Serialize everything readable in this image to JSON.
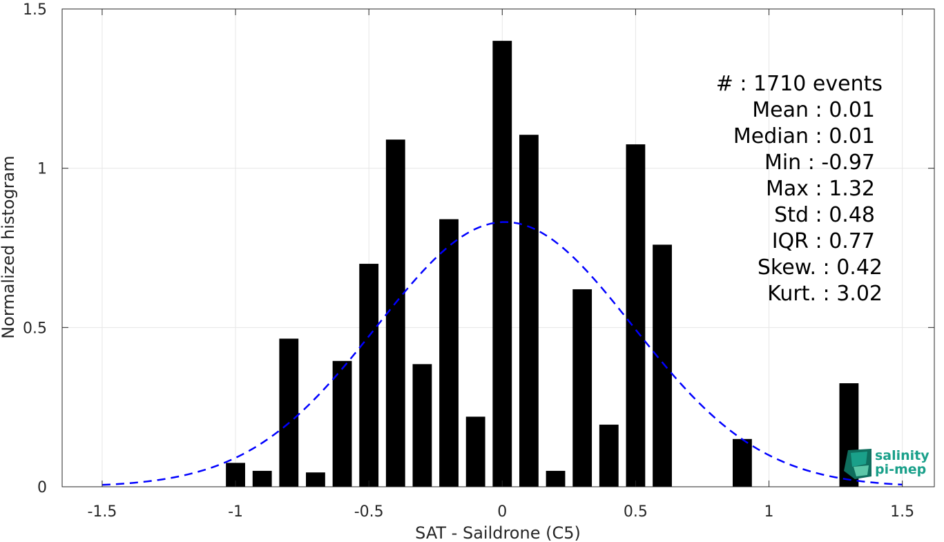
{
  "chart_data": {
    "type": "bar",
    "xlabel": "SAT - Saildrone (C5)",
    "ylabel": "Normalized histogram",
    "xlim": [
      -1.65,
      1.62
    ],
    "ylim": [
      0,
      1.5
    ],
    "xticks": [
      -1.5,
      -1,
      -0.5,
      0,
      0.5,
      1,
      1.5
    ],
    "xtick_labels": [
      "-1.5",
      "-1",
      "-0.5",
      "0",
      "0.5",
      "1",
      "1.5"
    ],
    "yticks": [
      0,
      0.5,
      1,
      1.5
    ],
    "ytick_labels": [
      "0",
      "0.5",
      "1",
      "1.5"
    ],
    "grid": true,
    "bar_color": "#000000",
    "bin_width": 0.1,
    "bars": [
      {
        "x": -1.0,
        "value": 0.075
      },
      {
        "x": -0.9,
        "value": 0.05
      },
      {
        "x": -0.8,
        "value": 0.465
      },
      {
        "x": -0.7,
        "value": 0.045
      },
      {
        "x": -0.6,
        "value": 0.395
      },
      {
        "x": -0.5,
        "value": 0.7
      },
      {
        "x": -0.4,
        "value": 1.09
      },
      {
        "x": -0.3,
        "value": 0.385
      },
      {
        "x": -0.2,
        "value": 0.84
      },
      {
        "x": -0.1,
        "value": 0.22
      },
      {
        "x": 0.0,
        "value": 1.4
      },
      {
        "x": 0.1,
        "value": 1.105
      },
      {
        "x": 0.2,
        "value": 0.05
      },
      {
        "x": 0.3,
        "value": 0.62
      },
      {
        "x": 0.4,
        "value": 0.195
      },
      {
        "x": 0.5,
        "value": 1.075
      },
      {
        "x": 0.6,
        "value": 0.76
      },
      {
        "x": 0.9,
        "value": 0.15
      },
      {
        "x": 1.3,
        "value": 0.325
      }
    ],
    "fit_curve": {
      "type": "normal",
      "style": "dashed",
      "color": "#0000ff",
      "mean": 0.01,
      "std": 0.48,
      "x_range": [
        -1.5,
        1.5
      ]
    },
    "stats": [
      {
        "label": "#  : 1710 events"
      },
      {
        "label": "Mean : 0.01"
      },
      {
        "label": "Median : 0.01"
      },
      {
        "label": "Min : -0.97"
      },
      {
        "label": "Max : 1.32"
      },
      {
        "label": "Std : 0.48"
      },
      {
        "label": "IQR : 0.77"
      },
      {
        "label": "Skew. : 0.42"
      },
      {
        "label": "Kurt. : 3.02"
      }
    ]
  },
  "logo": {
    "line1": "salinity",
    "line2": "pi-mep",
    "colors": [
      "#1aa08a",
      "#0f6e5e",
      "#5cc7a8"
    ]
  }
}
